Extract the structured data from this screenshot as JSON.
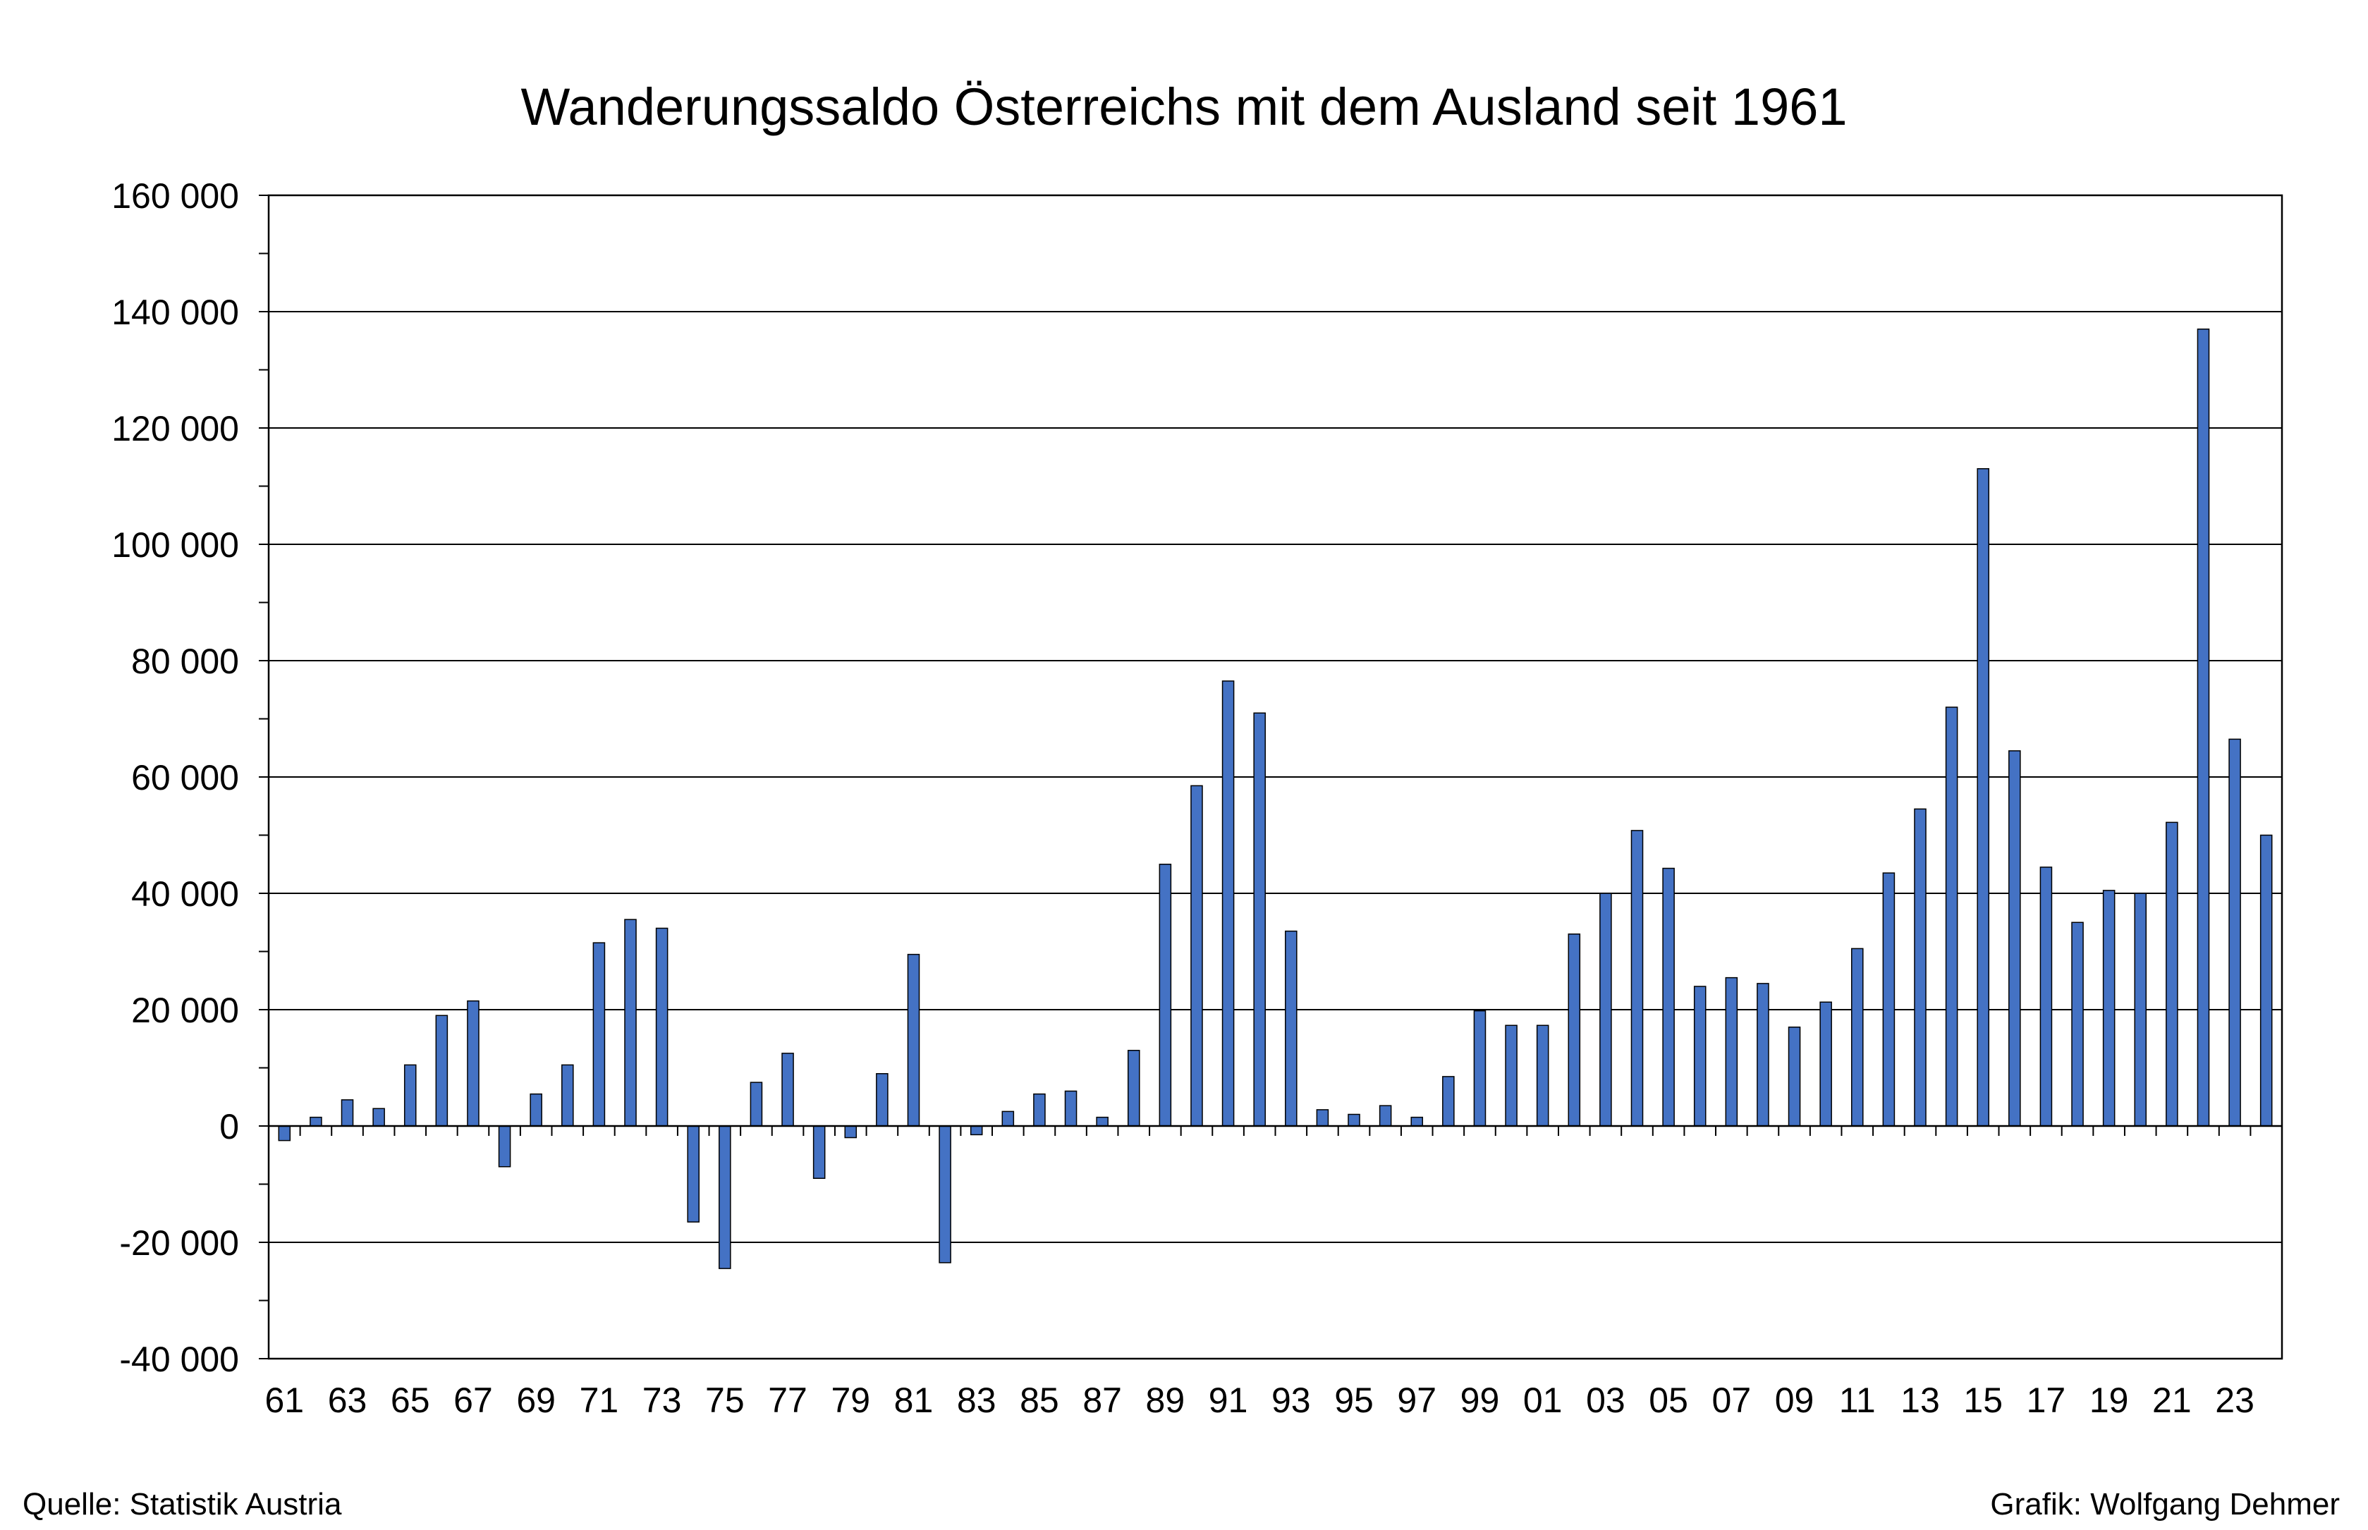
{
  "chart_data": {
    "type": "bar",
    "title": "Wanderungssaldo Österreichs mit dem Ausland seit 1961",
    "xlabel": "",
    "ylabel": "",
    "ylim": [
      -40000,
      160000
    ],
    "yticks": [
      -40000,
      -20000,
      0,
      20000,
      40000,
      60000,
      80000,
      100000,
      120000,
      140000,
      160000
    ],
    "ytick_labels": [
      "-40 000",
      "-20 000",
      "0",
      "20 000",
      "40 000",
      "60 000",
      "80 000",
      "100 000",
      "120 000",
      "140 000",
      "160 000"
    ],
    "grid": true,
    "legend": "none",
    "bar_color": "#4472C4",
    "categories": [
      "61",
      "62",
      "63",
      "64",
      "65",
      "66",
      "67",
      "68",
      "69",
      "70",
      "71",
      "72",
      "73",
      "74",
      "75",
      "76",
      "77",
      "78",
      "79",
      "80",
      "81",
      "82",
      "83",
      "84",
      "85",
      "86",
      "87",
      "88",
      "89",
      "90",
      "91",
      "92",
      "93",
      "94",
      "95",
      "96",
      "97",
      "98",
      "99",
      "00",
      "01",
      "02",
      "03",
      "04",
      "05",
      "06",
      "07",
      "08",
      "09",
      "10",
      "11",
      "12",
      "13",
      "14",
      "15",
      "16",
      "17",
      "18",
      "19",
      "20",
      "21",
      "22",
      "23",
      "24"
    ],
    "shown_tick_labels": [
      "61",
      "63",
      "65",
      "67",
      "69",
      "71",
      "73",
      "75",
      "77",
      "79",
      "81",
      "83",
      "85",
      "87",
      "89",
      "91",
      "93",
      "95",
      "97",
      "99",
      "01",
      "03",
      "05",
      "07",
      "09",
      "11",
      "13",
      "15",
      "17",
      "19",
      "21",
      "23"
    ],
    "values": [
      -2500,
      1500,
      4500,
      3000,
      10500,
      19000,
      21500,
      -7000,
      5500,
      10500,
      31500,
      35500,
      34000,
      -16500,
      -24500,
      7500,
      12500,
      -9000,
      -2000,
      9000,
      29500,
      -23500,
      -1500,
      2500,
      5500,
      6000,
      1500,
      13000,
      45000,
      58500,
      76500,
      71000,
      33500,
      2800,
      2000,
      3500,
      1500,
      8500,
      19800,
      17300,
      17300,
      33000,
      40000,
      50800,
      44300,
      24000,
      25500,
      24500,
      17000,
      21300,
      30500,
      43500,
      54500,
      72000,
      113000,
      64500,
      44500,
      35000,
      40500,
      40000,
      52200,
      137000,
      66500,
      50000
    ]
  },
  "footer": {
    "source": "Quelle: Statistik Austria",
    "credit": "Grafik: Wolfgang Dehmer"
  }
}
